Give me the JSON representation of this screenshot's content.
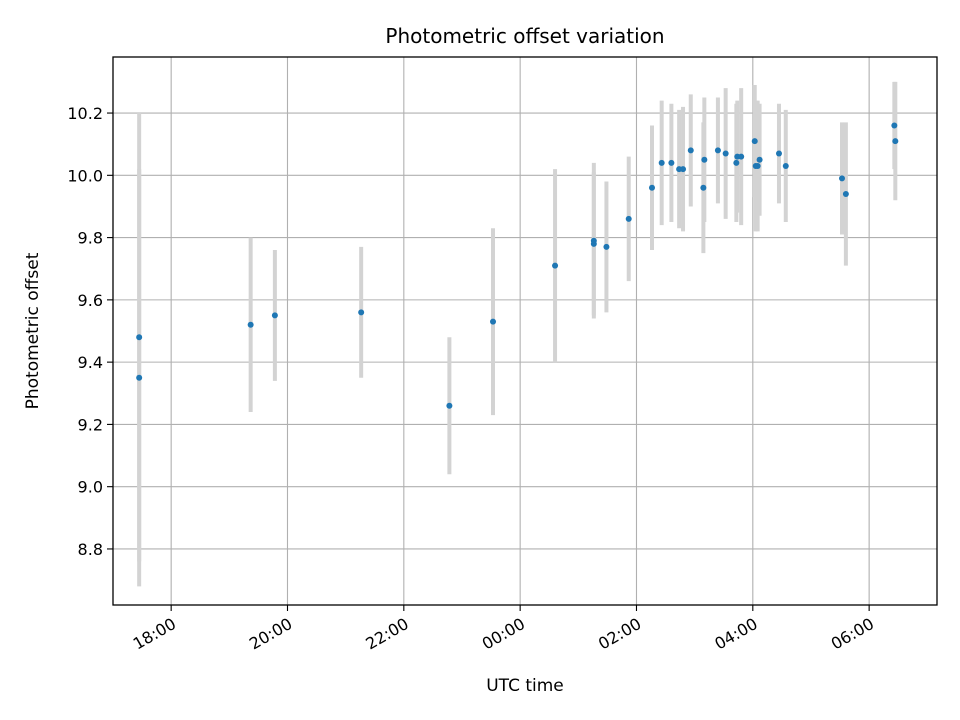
{
  "chart_data": {
    "type": "scatter",
    "title": "Photometric offset variation",
    "xlabel": "UTC time",
    "ylabel": "Photometric offset",
    "x_start": "17:00",
    "x_end": "07:10",
    "x_unit": "hours",
    "ylim": [
      8.62,
      10.38
    ],
    "grid": true,
    "x_ticks": [
      "18:00",
      "20:00",
      "22:00",
      "00:00",
      "02:00",
      "04:00",
      "06:00"
    ],
    "y_ticks": [
      "8.8",
      "9.0",
      "9.2",
      "9.4",
      "9.6",
      "9.8",
      "10.0",
      "10.2"
    ],
    "point_color": "#1f77b4",
    "errorbar_color": "#d3d3d3",
    "points": [
      {
        "time": "17:27",
        "y": 9.48,
        "err": 0.72
      },
      {
        "time": "17:27",
        "y": 9.35,
        "err": 0.67
      },
      {
        "time": "19:22",
        "y": 9.52,
        "err": 0.28
      },
      {
        "time": "19:47",
        "y": 9.55,
        "err": 0.21
      },
      {
        "time": "21:16",
        "y": 9.56,
        "err": 0.21
      },
      {
        "time": "22:47",
        "y": 9.26,
        "err": 0.22
      },
      {
        "time": "23:32",
        "y": 9.53,
        "err": 0.3
      },
      {
        "time": "00:36",
        "y": 9.71,
        "err": 0.31
      },
      {
        "time": "01:16",
        "y": 9.79,
        "err": 0.25
      },
      {
        "time": "01:16",
        "y": 9.78,
        "err": 0.23
      },
      {
        "time": "01:29",
        "y": 9.77,
        "err": 0.21
      },
      {
        "time": "01:52",
        "y": 9.86,
        "err": 0.2
      },
      {
        "time": "02:16",
        "y": 9.96,
        "err": 0.2
      },
      {
        "time": "02:26",
        "y": 10.04,
        "err": 0.2
      },
      {
        "time": "02:36",
        "y": 10.04,
        "err": 0.19
      },
      {
        "time": "02:44",
        "y": 10.02,
        "err": 0.19
      },
      {
        "time": "02:48",
        "y": 10.02,
        "err": 0.2
      },
      {
        "time": "02:56",
        "y": 10.08,
        "err": 0.18
      },
      {
        "time": "03:09",
        "y": 9.96,
        "err": 0.21
      },
      {
        "time": "03:10",
        "y": 10.05,
        "err": 0.2
      },
      {
        "time": "03:24",
        "y": 10.08,
        "err": 0.17
      },
      {
        "time": "03:32",
        "y": 10.07,
        "err": 0.21
      },
      {
        "time": "03:43",
        "y": 10.04,
        "err": 0.19
      },
      {
        "time": "03:44",
        "y": 10.06,
        "err": 0.18
      },
      {
        "time": "03:48",
        "y": 10.06,
        "err": 0.22
      },
      {
        "time": "04:02",
        "y": 10.11,
        "err": 0.18
      },
      {
        "time": "04:03",
        "y": 10.03,
        "err": 0.21
      },
      {
        "time": "04:05",
        "y": 10.03,
        "err": 0.21
      },
      {
        "time": "04:07",
        "y": 10.05,
        "err": 0.18
      },
      {
        "time": "04:27",
        "y": 10.07,
        "err": 0.16
      },
      {
        "time": "04:34",
        "y": 10.03,
        "err": 0.18
      },
      {
        "time": "05:32",
        "y": 9.99,
        "err": 0.18
      },
      {
        "time": "05:36",
        "y": 9.94,
        "err": 0.23
      },
      {
        "time": "06:26",
        "y": 10.16,
        "err": 0.14
      },
      {
        "time": "06:27",
        "y": 10.11,
        "err": 0.19
      }
    ]
  }
}
